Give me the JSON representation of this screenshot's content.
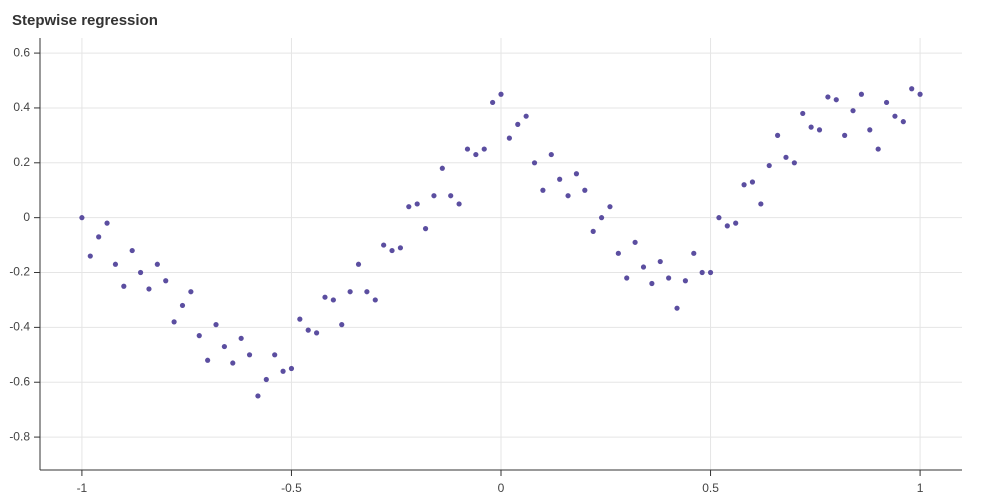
{
  "chart_data": {
    "type": "scatter",
    "title": "Stepwise regression",
    "x": [
      -1.0,
      -0.98,
      -0.96,
      -0.94,
      -0.92,
      -0.9,
      -0.88,
      -0.86,
      -0.84,
      -0.82,
      -0.8,
      -0.78,
      -0.76,
      -0.74,
      -0.72,
      -0.7,
      -0.68,
      -0.66,
      -0.64,
      -0.62,
      -0.6,
      -0.58,
      -0.56,
      -0.54,
      -0.52,
      -0.5,
      -0.48,
      -0.46,
      -0.44,
      -0.42,
      -0.4,
      -0.38,
      -0.36,
      -0.34,
      -0.32,
      -0.3,
      -0.28,
      -0.26,
      -0.24,
      -0.22,
      -0.2,
      -0.18,
      -0.16,
      -0.14,
      -0.12,
      -0.1,
      -0.08,
      -0.06,
      -0.04,
      -0.02,
      0.0,
      0.02,
      0.04,
      0.06,
      0.08,
      0.1,
      0.12,
      0.14,
      0.16,
      0.18,
      0.2,
      0.22,
      0.24,
      0.26,
      0.28,
      0.3,
      0.32,
      0.34,
      0.36,
      0.38,
      0.4,
      0.42,
      0.44,
      0.46,
      0.48,
      0.5,
      0.52,
      0.54,
      0.56,
      0.58,
      0.6,
      0.62,
      0.64,
      0.66,
      0.68,
      0.7,
      0.72,
      0.74,
      0.76,
      0.78,
      0.8,
      0.82,
      0.84,
      0.86,
      0.88,
      0.9,
      0.92,
      0.94,
      0.96,
      0.98,
      1.0
    ],
    "values": [
      0.0,
      -0.14,
      -0.07,
      -0.02,
      -0.17,
      -0.25,
      -0.12,
      -0.2,
      -0.26,
      -0.17,
      -0.23,
      -0.38,
      -0.32,
      -0.27,
      -0.43,
      -0.52,
      -0.39,
      -0.47,
      -0.53,
      -0.44,
      -0.5,
      -0.65,
      -0.59,
      -0.5,
      -0.56,
      -0.55,
      -0.37,
      -0.41,
      -0.42,
      -0.29,
      -0.3,
      -0.39,
      -0.27,
      -0.17,
      -0.27,
      -0.3,
      -0.1,
      -0.12,
      -0.11,
      0.04,
      0.05,
      -0.04,
      0.08,
      0.18,
      0.08,
      0.05,
      0.25,
      0.23,
      0.25,
      0.42,
      0.45,
      0.29,
      0.34,
      0.37,
      0.2,
      0.1,
      0.23,
      0.14,
      0.08,
      0.16,
      0.1,
      -0.05,
      0.0,
      0.04,
      -0.13,
      -0.22,
      -0.09,
      -0.18,
      -0.24,
      -0.16,
      -0.22,
      -0.33,
      -0.23,
      -0.13,
      -0.2,
      -0.2,
      0.0,
      -0.03,
      -0.02,
      0.12,
      0.13,
      0.05,
      0.19,
      0.3,
      0.22,
      0.2,
      0.38,
      0.33,
      0.32,
      0.44,
      0.43,
      0.3,
      0.39,
      0.45,
      0.32,
      0.25,
      0.42,
      0.37,
      0.35,
      0.47,
      0.45
    ],
    "color": "#5b4ea0",
    "xlim": [
      -1.1,
      1.1
    ],
    "xticks": [
      -1,
      -0.5,
      0,
      0.5,
      1
    ],
    "ylim": [
      -0.92,
      0.655
    ],
    "yticks": [
      -0.8,
      -0.6,
      -0.4,
      -0.2,
      0,
      0.2,
      0.4,
      0.6
    ],
    "grid": true
  }
}
